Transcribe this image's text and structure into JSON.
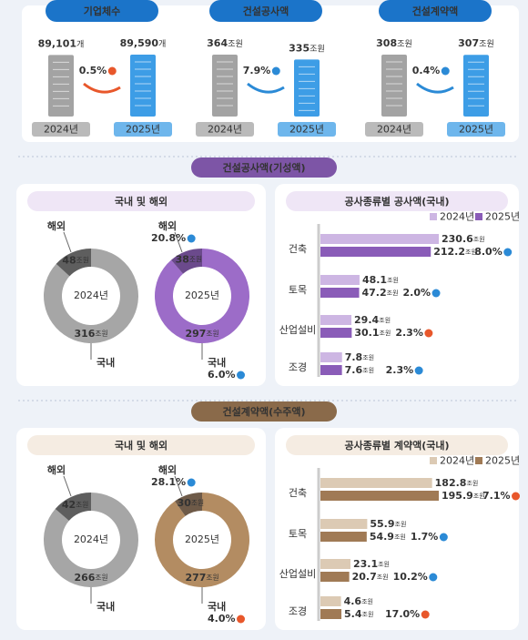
{
  "summary": [
    {
      "title": "기업체수",
      "unit": "개",
      "years": [
        "2024년",
        "2025년"
      ],
      "values": [
        89101,
        89590
      ],
      "value_labels": [
        "89,101",
        "89,590"
      ],
      "colors": [
        "#a3a3a3",
        "#3d9de6"
      ],
      "change": "0.5%",
      "change_color": "#e8572b"
    },
    {
      "title": "건설공사액",
      "unit": "조원",
      "years": [
        "2024년",
        "2025년"
      ],
      "values": [
        364,
        335
      ],
      "colors": [
        "#a3a3a3",
        "#3d9de6"
      ],
      "change": "7.9%",
      "change_color": "#2b8ad6"
    },
    {
      "title": "건설계약액",
      "unit": "조원",
      "years": [
        "2024년",
        "2025년"
      ],
      "values": [
        308,
        307
      ],
      "colors": [
        "#a3a3a3",
        "#3d9de6"
      ],
      "change": "0.4%",
      "change_color": "#2b8ad6"
    }
  ],
  "sections": [
    {
      "title": "건설공사액(기성액)",
      "color": "#7d55a6",
      "light": "#efe6f6",
      "share": {
        "title": "국내 및 해외",
        "unit": "조원",
        "charts": [
          {
            "year": "2024년",
            "labels": [
              "국내",
              "해외"
            ],
            "values": [
              316,
              48
            ],
            "colors": [
              "#a6a6a6",
              "#5e5e5e"
            ]
          },
          {
            "year": "2025년",
            "labels": [
              "국내",
              "해외"
            ],
            "values": [
              297,
              38
            ],
            "colors": [
              "#9c6cc8",
              "#6b4a8c"
            ],
            "changes": [
              "6.0%",
              "20.8%"
            ],
            "change_colors": [
              "#2b8ad6",
              "#2b8ad6"
            ]
          }
        ]
      },
      "kinds": {
        "title": "공사종류별 공사액(국내)",
        "unit": "조원",
        "categories": [
          "건축",
          "토목",
          "산업설비",
          "조경"
        ],
        "series": [
          {
            "name": "2024년",
            "color": "#cdb6e3",
            "values": [
              230.6,
              48.1,
              29.4,
              7.8
            ]
          },
          {
            "name": "2025년",
            "color": "#8a5cb8",
            "values": [
              212.2,
              47.2,
              30.1,
              7.6
            ],
            "changes": [
              "8.0%",
              "2.0%",
              "2.3%",
              "2.3%"
            ],
            "change_colors": [
              "#2b8ad6",
              "#2b8ad6",
              "#e8572b",
              "#2b8ad6"
            ]
          }
        ]
      }
    },
    {
      "title": "건설계약액(수주액)",
      "color": "#8a6a4a",
      "light": "#f5ece2",
      "share": {
        "title": "국내 및 해외",
        "unit": "조원",
        "charts": [
          {
            "year": "2024년",
            "labels": [
              "국내",
              "해외"
            ],
            "values": [
              266,
              42
            ],
            "colors": [
              "#a6a6a6",
              "#5e5e5e"
            ]
          },
          {
            "year": "2025년",
            "labels": [
              "국내",
              "해외"
            ],
            "values": [
              277,
              30
            ],
            "colors": [
              "#b38c62",
              "#6e5a48"
            ],
            "changes": [
              "4.0%",
              "28.1%"
            ],
            "change_colors": [
              "#e8572b",
              "#2b8ad6"
            ]
          }
        ]
      },
      "kinds": {
        "title": "공사종류별 계약액(국내)",
        "unit": "조원",
        "categories": [
          "건축",
          "토목",
          "산업설비",
          "조경"
        ],
        "series": [
          {
            "name": "2024년",
            "color": "#dccab4",
            "values": [
              182.8,
              55.9,
              23.1,
              4.6
            ]
          },
          {
            "name": "2025년",
            "color": "#a07a55",
            "values": [
              195.9,
              54.9,
              20.7,
              5.4
            ],
            "changes": [
              "7.1%",
              "1.7%",
              "10.2%",
              "17.0%"
            ],
            "change_colors": [
              "#e8572b",
              "#2b8ad6",
              "#2b8ad6",
              "#e8572b"
            ]
          }
        ]
      }
    }
  ]
}
